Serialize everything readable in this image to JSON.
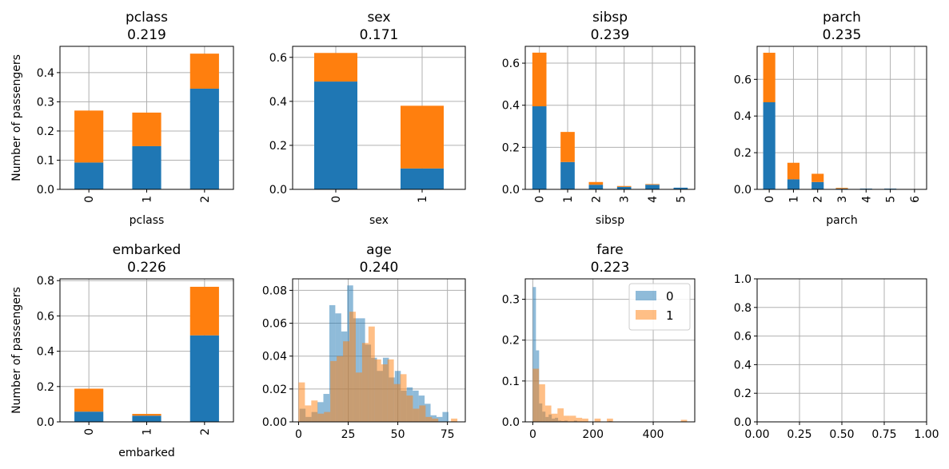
{
  "colors": {
    "class0": "#1f77b4",
    "class1": "#ff7f0e",
    "grid": "#b0b0b0"
  },
  "chart_data": [
    {
      "type": "bar",
      "stacked": true,
      "title": "pclass",
      "subtitle": "0.219",
      "xlabel": "pclass",
      "ylabel": "Number of passengers",
      "categories": [
        "0",
        "1",
        "2"
      ],
      "rotate_x": true,
      "ylim": [
        0,
        0.49
      ],
      "yticks": [
        "0.0",
        "0.1",
        "0.2",
        "0.3",
        "0.4"
      ],
      "series": [
        {
          "values": [
            0.092,
            0.148,
            0.345
          ]
        },
        {
          "values": [
            0.178,
            0.115,
            0.12
          ]
        }
      ],
      "grid": true
    },
    {
      "type": "bar",
      "stacked": true,
      "title": "sex",
      "subtitle": "0.171",
      "xlabel": "sex",
      "ylabel": "",
      "categories": [
        "0",
        "1"
      ],
      "rotate_x": true,
      "ylim": [
        0,
        0.65
      ],
      "yticks": [
        "0.0",
        "0.2",
        "0.4",
        "0.6"
      ],
      "series": [
        {
          "values": [
            0.49,
            0.095
          ]
        },
        {
          "values": [
            0.13,
            0.285
          ]
        }
      ],
      "grid": true
    },
    {
      "type": "bar",
      "stacked": true,
      "title": "sibsp",
      "subtitle": "0.239",
      "xlabel": "sibsp",
      "ylabel": "",
      "categories": [
        "0",
        "1",
        "2",
        "3",
        "4",
        "5"
      ],
      "rotate_x": true,
      "ylim": [
        0,
        0.68
      ],
      "yticks": [
        "0.0",
        "0.2",
        "0.4",
        "0.6"
      ],
      "series": [
        {
          "values": [
            0.395,
            0.13,
            0.022,
            0.012,
            0.022,
            0.008
          ]
        },
        {
          "values": [
            0.255,
            0.143,
            0.013,
            0.004,
            0.003,
            0.0
          ]
        }
      ],
      "grid": true
    },
    {
      "type": "bar",
      "stacked": true,
      "title": "parch",
      "subtitle": "0.235",
      "xlabel": "parch",
      "ylabel": "",
      "categories": [
        "0",
        "1",
        "2",
        "3",
        "4",
        "5",
        "6"
      ],
      "rotate_x": true,
      "ylim": [
        0,
        0.78
      ],
      "yticks": [
        "0.0",
        "0.2",
        "0.4",
        "0.6"
      ],
      "series": [
        {
          "values": [
            0.475,
            0.055,
            0.04,
            0.004,
            0.004,
            0.004,
            0.002
          ]
        },
        {
          "values": [
            0.27,
            0.09,
            0.045,
            0.004,
            0.0,
            0.0,
            0.0
          ]
        }
      ],
      "grid": true
    },
    {
      "type": "bar",
      "stacked": true,
      "title": "embarked",
      "subtitle": "0.226",
      "xlabel": "embarked",
      "ylabel": "Number of passengers",
      "categories": [
        "0",
        "1",
        "2"
      ],
      "rotate_x": true,
      "ylim": [
        0,
        0.81
      ],
      "yticks": [
        "0.0",
        "0.2",
        "0.4",
        "0.6",
        "0.8"
      ],
      "series": [
        {
          "values": [
            0.058,
            0.035,
            0.49
          ]
        },
        {
          "values": [
            0.13,
            0.01,
            0.275
          ]
        }
      ],
      "grid": true
    },
    {
      "type": "histogram",
      "title": "age",
      "subtitle": "0.240",
      "xlabel": "",
      "ylabel": "",
      "xlim": [
        -3,
        84
      ],
      "ylim": [
        0,
        0.087
      ],
      "xticks": [
        0,
        25,
        50,
        75
      ],
      "xtick_labels": [
        "0",
        "25",
        "50",
        "75"
      ],
      "yticks": [
        0,
        0.02,
        0.04,
        0.06,
        0.08
      ],
      "ytick_labels": [
        "0.00",
        "0.02",
        "0.04",
        "0.06",
        "0.08"
      ],
      "series": [
        {
          "edges": [
            0.5,
            3.5,
            6.5,
            9.5,
            12.5,
            15.5,
            18.5,
            21.5,
            24.5,
            27.5,
            30.5,
            33.5,
            36.5,
            39.5,
            42.5,
            45.5,
            48.5,
            51.5,
            54.5,
            57.5,
            60.5,
            63.5,
            66.5,
            69.5,
            72.5,
            75.5
          ],
          "values": [
            0.008,
            0.003,
            0.006,
            0.012,
            0.017,
            0.071,
            0.066,
            0.055,
            0.083,
            0.063,
            0.063,
            0.047,
            0.039,
            0.031,
            0.039,
            0.027,
            0.031,
            0.019,
            0.021,
            0.019,
            0.016,
            0.011,
            0.004,
            0.003,
            0.006
          ]
        },
        {
          "edges": [
            0,
            3.2,
            6.4,
            9.6,
            12.8,
            16,
            19.2,
            22.4,
            25.6,
            28.8,
            32,
            35.2,
            38.4,
            41.6,
            44.8,
            48,
            51.2,
            54.4,
            57.6,
            60.8,
            64,
            67.2,
            70.4,
            73.6,
            76.8,
            80
          ],
          "values": [
            0.024,
            0.01,
            0.013,
            0.005,
            0.006,
            0.037,
            0.04,
            0.049,
            0.067,
            0.03,
            0.048,
            0.058,
            0.038,
            0.035,
            0.038,
            0.023,
            0.029,
            0.016,
            0.008,
            0.01,
            0.003,
            0.002,
            0.0,
            0.0,
            0.002
          ]
        }
      ],
      "grid": true
    },
    {
      "type": "histogram",
      "title": "fare",
      "subtitle": "0.223",
      "xlabel": "",
      "ylabel": "",
      "xlim": [
        -25,
        538
      ],
      "ylim": [
        0,
        0.35
      ],
      "xticks": [
        0,
        200,
        400
      ],
      "xtick_labels": [
        "0",
        "200",
        "400"
      ],
      "yticks": [
        0,
        0.1,
        0.2,
        0.3
      ],
      "ytick_labels": [
        "0.0",
        "0.1",
        "0.2",
        "0.3"
      ],
      "legend": {
        "position": "upper-right",
        "labels": [
          "0",
          "1"
        ]
      },
      "series": [
        {
          "edges": [
            0,
            10.5,
            21,
            31.5,
            42,
            52.5,
            63,
            73.5,
            84,
            94.5,
            105,
            115.5,
            126,
            136.5,
            147,
            157.5,
            168,
            178.5,
            189,
            199.5,
            210,
            220.5,
            231,
            241.5,
            252,
            262.5
          ],
          "values": [
            0.33,
            0.175,
            0.045,
            0.025,
            0.012,
            0.018,
            0.008,
            0.01,
            0.003,
            0.002,
            0.003,
            0.0,
            0.0,
            0.003,
            0.0,
            0.0,
            0.0,
            0.0,
            0.0,
            0.0,
            0.0,
            0.0,
            0.0,
            0.0,
            0.002
          ]
        },
        {
          "edges": [
            0,
            20.5,
            41,
            61.5,
            82,
            102.5,
            123,
            143.5,
            164,
            184.5,
            205,
            225.5,
            246,
            266.5,
            287,
            307.5,
            328,
            348.5,
            369,
            389.5,
            410,
            430.5,
            451,
            471.5,
            492,
            512.5
          ],
          "values": [
            0.13,
            0.092,
            0.04,
            0.02,
            0.033,
            0.015,
            0.015,
            0.01,
            0.008,
            0.0,
            0.008,
            0.0,
            0.008,
            0.0,
            0.0,
            0.0,
            0.0,
            0.0,
            0.0,
            0.0,
            0.0,
            0.0,
            0.0,
            0.0,
            0.005
          ]
        }
      ],
      "grid": true
    },
    {
      "type": "empty",
      "title": "",
      "subtitle": "",
      "xlabel": "",
      "ylabel": "",
      "xlim": [
        0,
        1
      ],
      "ylim": [
        0,
        1
      ],
      "xticks": [
        0,
        0.25,
        0.5,
        0.75,
        1.0
      ],
      "xtick_labels": [
        "0.00",
        "0.25",
        "0.50",
        "0.75",
        "1.00"
      ],
      "yticks": [
        0,
        0.2,
        0.4,
        0.6,
        0.8,
        1.0
      ],
      "ytick_labels": [
        "0.0",
        "0.2",
        "0.4",
        "0.6",
        "0.8",
        "1.0"
      ],
      "grid": true
    }
  ]
}
